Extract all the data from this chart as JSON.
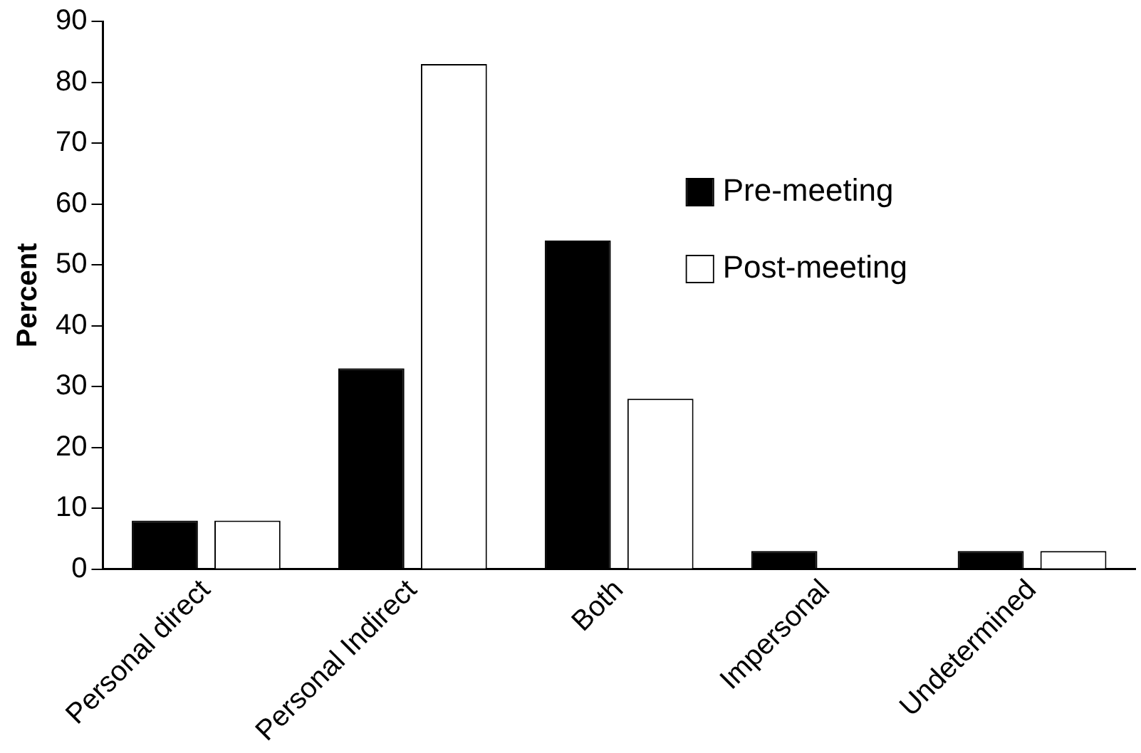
{
  "chart_data": {
    "type": "bar",
    "ylabel": "Percent",
    "categories": [
      "Personal direct",
      "Personal Indirect",
      "Both",
      "Impersonal",
      "Undetermined"
    ],
    "series": [
      {
        "name": "Pre-meeting",
        "color": "#000000",
        "values": [
          8,
          33,
          54,
          3,
          3
        ]
      },
      {
        "name": "Post-meeting",
        "color": "#ffffff",
        "values": [
          8,
          83,
          28,
          0,
          3
        ]
      }
    ],
    "ylim": [
      0,
      90
    ],
    "yticks": [
      0,
      10,
      20,
      30,
      40,
      50,
      60,
      70,
      80,
      90
    ],
    "grid": false,
    "legend": "right"
  }
}
